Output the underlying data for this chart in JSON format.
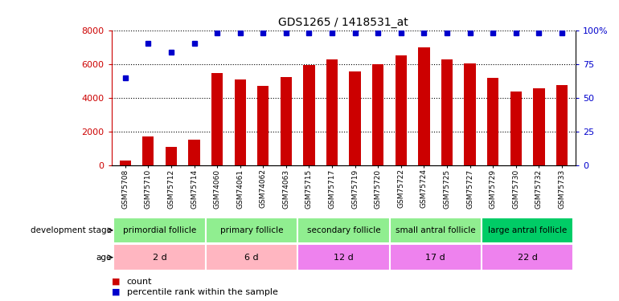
{
  "title": "GDS1265 / 1418531_at",
  "samples": [
    "GSM75708",
    "GSM75710",
    "GSM75712",
    "GSM75714",
    "GSM74060",
    "GSM74061",
    "GSM74062",
    "GSM74063",
    "GSM75715",
    "GSM75717",
    "GSM75719",
    "GSM75720",
    "GSM75722",
    "GSM75724",
    "GSM75725",
    "GSM75727",
    "GSM75729",
    "GSM75730",
    "GSM75732",
    "GSM75733"
  ],
  "counts": [
    300,
    1700,
    1100,
    1550,
    5450,
    5100,
    4700,
    5250,
    5950,
    6250,
    5550,
    6000,
    6500,
    7000,
    6250,
    6050,
    5200,
    4350,
    4550,
    4750
  ],
  "percentile_ranks": [
    65,
    90,
    84,
    90,
    98,
    98,
    98,
    98,
    98,
    98,
    98,
    98,
    98,
    98,
    98,
    98,
    98,
    98,
    98,
    98
  ],
  "bar_color": "#cc0000",
  "dot_color": "#0000cc",
  "ylim_left": [
    0,
    8000
  ],
  "ylim_right": [
    0,
    100
  ],
  "yticks_left": [
    0,
    2000,
    4000,
    6000,
    8000
  ],
  "yticks_right": [
    0,
    25,
    50,
    75,
    100
  ],
  "ytick_labels_right": [
    "0",
    "25",
    "50",
    "75",
    "100%"
  ],
  "groups": [
    {
      "label": "primordial follicle",
      "age": "2 d",
      "start": 0,
      "end": 4,
      "bg_stage": "#90ee90",
      "bg_age": "#ffb6c1"
    },
    {
      "label": "primary follicle",
      "age": "6 d",
      "start": 4,
      "end": 8,
      "bg_stage": "#90ee90",
      "bg_age": "#ffb6c1"
    },
    {
      "label": "secondary follicle",
      "age": "12 d",
      "start": 8,
      "end": 12,
      "bg_stage": "#90ee90",
      "bg_age": "#ee82ee"
    },
    {
      "label": "small antral follicle",
      "age": "17 d",
      "start": 12,
      "end": 16,
      "bg_stage": "#90ee90",
      "bg_age": "#ee82ee"
    },
    {
      "label": "large antral follicle",
      "age": "22 d",
      "start": 16,
      "end": 20,
      "bg_stage": "#00cc66",
      "bg_age": "#ee82ee"
    }
  ],
  "legend_items": [
    {
      "color": "#cc0000",
      "label": "count"
    },
    {
      "color": "#0000cc",
      "label": "percentile rank within the sample"
    }
  ],
  "background_color": "white",
  "axis_label_color_left": "#cc0000",
  "axis_label_color_right": "#0000cc"
}
